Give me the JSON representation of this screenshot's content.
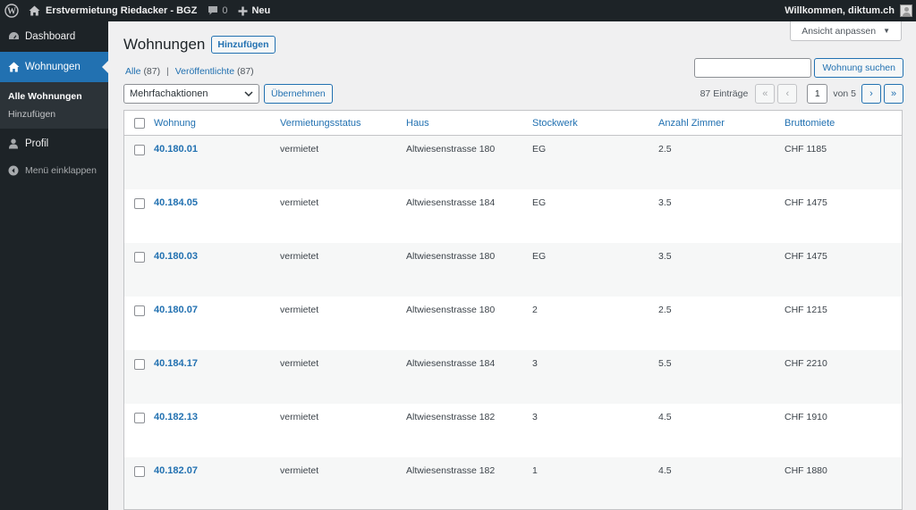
{
  "adminbar": {
    "site_name": "Erstvermietung Riedacker - BGZ",
    "comments_count": "0",
    "new_label": "Neu",
    "welcome": "Willkommen, diktum.ch"
  },
  "sidebar": {
    "dashboard": "Dashboard",
    "wohnungen": "Wohnungen",
    "sub_all": "Alle Wohnungen",
    "sub_add": "Hinzufügen",
    "profil": "Profil",
    "collapse": "Menü einklappen"
  },
  "header": {
    "title": "Wohnungen",
    "add_button": "Hinzufügen",
    "screen_options": "Ansicht anpassen"
  },
  "views": {
    "all_label": "Alle",
    "all_count": "(87)",
    "published_label": "Veröffentlichte",
    "published_count": "(87)",
    "separator": "|"
  },
  "search": {
    "value": "",
    "button": "Wohnung suchen"
  },
  "bulk": {
    "selected": "Mehrfachaktionen",
    "apply": "Übernehmen"
  },
  "pagination": {
    "count": "87 Einträge",
    "first": "«",
    "prev": "‹",
    "current": "1",
    "of": "von 5",
    "next": "›",
    "last": "»"
  },
  "table": {
    "columns": [
      "Wohnung",
      "Vermietungsstatus",
      "Haus",
      "Stockwerk",
      "Anzahl Zimmer",
      "Bruttomiete"
    ],
    "rows": [
      {
        "wohnung": "40.180.01",
        "status": "vermietet",
        "haus": "Altwiesenstrasse 180",
        "stockwerk": "EG",
        "zimmer": "2.5",
        "miete": "CHF 1185"
      },
      {
        "wohnung": "40.184.05",
        "status": "vermietet",
        "haus": "Altwiesenstrasse 184",
        "stockwerk": "EG",
        "zimmer": "3.5",
        "miete": "CHF 1475"
      },
      {
        "wohnung": "40.180.03",
        "status": "vermietet",
        "haus": "Altwiesenstrasse 180",
        "stockwerk": "EG",
        "zimmer": "3.5",
        "miete": "CHF 1475"
      },
      {
        "wohnung": "40.180.07",
        "status": "vermietet",
        "haus": "Altwiesenstrasse 180",
        "stockwerk": "2",
        "zimmer": "2.5",
        "miete": "CHF 1215"
      },
      {
        "wohnung": "40.184.17",
        "status": "vermietet",
        "haus": "Altwiesenstrasse 184",
        "stockwerk": "3",
        "zimmer": "5.5",
        "miete": "CHF 2210"
      },
      {
        "wohnung": "40.182.13",
        "status": "vermietet",
        "haus": "Altwiesenstrasse 182",
        "stockwerk": "3",
        "zimmer": "4.5",
        "miete": "CHF 1910"
      },
      {
        "wohnung": "40.182.07",
        "status": "vermietet",
        "haus": "Altwiesenstrasse 182",
        "stockwerk": "1",
        "zimmer": "4.5",
        "miete": "CHF 1880"
      }
    ]
  },
  "colors": {
    "accent": "#2271b1",
    "adminbar_bg": "#1d2327",
    "page_bg": "#f0f0f1"
  }
}
